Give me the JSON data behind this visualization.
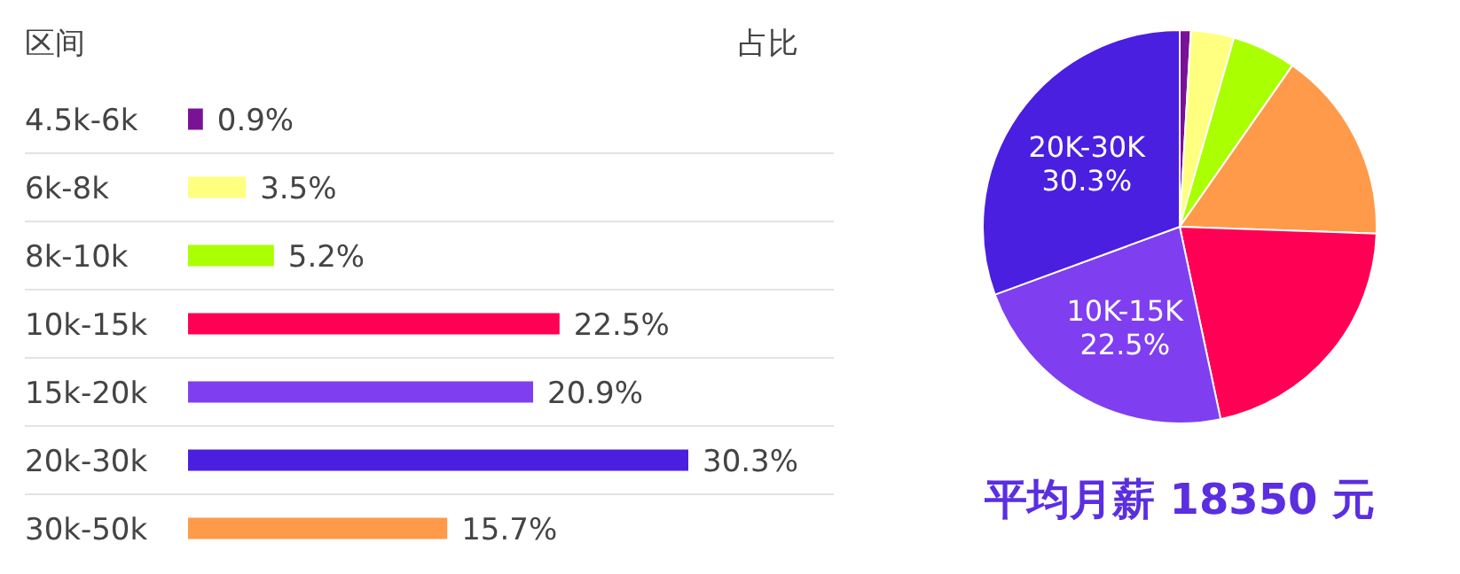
{
  "chart_data": [
    {
      "type": "bar",
      "orientation": "horizontal",
      "xlabel": "占比",
      "ylabel": "区间",
      "categories": [
        "4.5k-6k",
        "6k-8k",
        "8k-10k",
        "10k-15k",
        "15k-20k",
        "20k-30k",
        "30k-50k"
      ],
      "values": [
        0.9,
        3.5,
        5.2,
        22.5,
        20.9,
        30.3,
        15.7
      ],
      "value_labels": [
        "0.9%",
        "3.5%",
        "5.2%",
        "22.5%",
        "20.9%",
        "30.3%",
        "15.7%"
      ],
      "colors": [
        "#7a1296",
        "#ffff80",
        "#aaff00",
        "#ff0055",
        "#7f3ff0",
        "#4a1fdf",
        "#ff9a4a"
      ],
      "grid": "y"
    },
    {
      "type": "pie",
      "title": "平均月薪 18350 元",
      "categories": [
        null,
        null,
        null,
        null,
        null,
        "10K-15K",
        "20K-30K"
      ],
      "values": [
        0.9,
        3.5,
        5.2,
        15.7,
        20.9,
        22.5,
        30.3
      ],
      "value_labels": [
        null,
        null,
        null,
        null,
        null,
        "22.5%",
        "30.3%"
      ],
      "colors": [
        "#7a1296",
        "#ffff80",
        "#aaff00",
        "#ff9a4a",
        "#ff0055",
        "#7f3ff0",
        "#4a1fdf"
      ]
    }
  ]
}
